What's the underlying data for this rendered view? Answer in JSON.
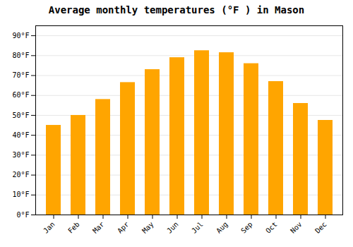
{
  "chart_data": {
    "type": "bar",
    "title": "Average monthly temperatures (°F ) in Mason",
    "categories": [
      "Jan",
      "Feb",
      "Mar",
      "Apr",
      "May",
      "Jun",
      "Jul",
      "Aug",
      "Sep",
      "Oct",
      "Nov",
      "Dec"
    ],
    "values": [
      45,
      50,
      58,
      66.5,
      73,
      79,
      82.5,
      81.5,
      76,
      67,
      56,
      47.5
    ],
    "color": "#FFA500",
    "ylim": [
      0,
      95
    ],
    "yticks": [
      {
        "value": 0,
        "label": "0°F"
      },
      {
        "value": 10,
        "label": "10°F"
      },
      {
        "value": 20,
        "label": "20°F"
      },
      {
        "value": 30,
        "label": "30°F"
      },
      {
        "value": 40,
        "label": "40°F"
      },
      {
        "value": 50,
        "label": "50°F"
      },
      {
        "value": 60,
        "label": "60°F"
      },
      {
        "value": 70,
        "label": "70°F"
      },
      {
        "value": 80,
        "label": "80°F"
      },
      {
        "value": 90,
        "label": "90°F"
      }
    ],
    "grid": true
  }
}
